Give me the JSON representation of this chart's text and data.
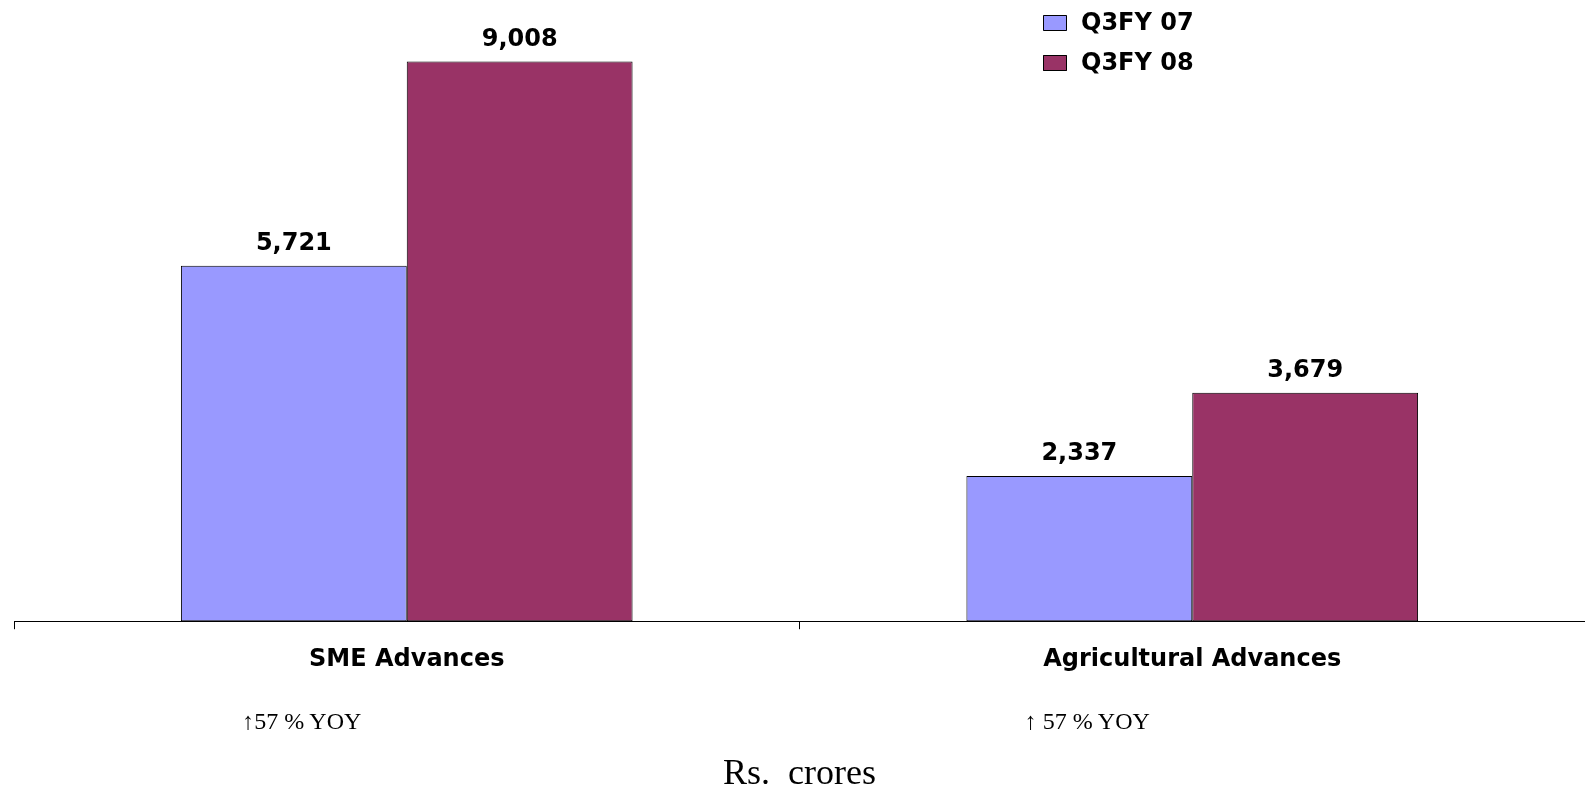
{
  "chart_data": {
    "type": "bar",
    "categories": [
      "SME Advances",
      "Agricultural Advances"
    ],
    "series": [
      {
        "name": "Q3FY 07",
        "color": "#9999ff",
        "values": [
          5721,
          2337
        ],
        "value_labels": [
          "5,721",
          "2,337"
        ]
      },
      {
        "name": "Q3FY 08",
        "color": "#993366",
        "values": [
          9008,
          3679
        ],
        "value_labels": [
          "9,008",
          "3,679"
        ]
      }
    ],
    "xlabel": "Rs.  crores",
    "annotations": [
      "↑57 % YOY",
      "↑ 57 % YOY"
    ],
    "legend": "top right",
    "grid": false
  }
}
